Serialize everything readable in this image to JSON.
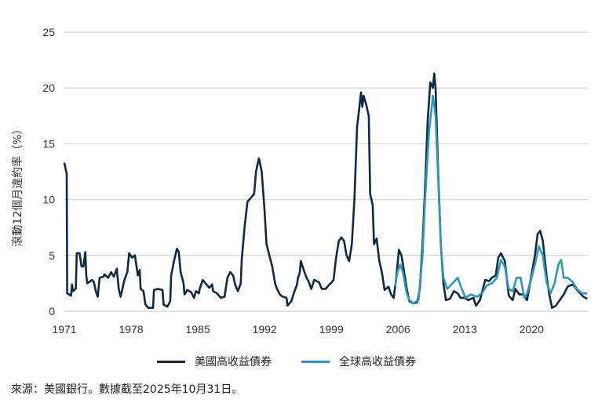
{
  "chart_data": {
    "type": "line",
    "title": "",
    "xlabel": "",
    "ylabel": "滾動12個月違約率（%）",
    "ylim": [
      0,
      25
    ],
    "xlim": [
      1971,
      2026
    ],
    "yticks": [
      "0",
      "5",
      "10",
      "15",
      "20",
      "25"
    ],
    "xticks": [
      "1971",
      "1978",
      "1985",
      "1992",
      "1999",
      "2006",
      "2013",
      "2020"
    ],
    "grid": "horizontal",
    "legend_position": "bottom",
    "series": [
      {
        "name": "美國高收益債券",
        "color": "#0d2a45",
        "points": [
          [
            1971.0,
            13.3
          ],
          [
            1971.2,
            12.5
          ],
          [
            1971.25,
            12.3
          ],
          [
            1971.3,
            1.6
          ],
          [
            1971.7,
            1.4
          ],
          [
            1971.8,
            2.4
          ],
          [
            1971.9,
            1.8
          ],
          [
            1972.2,
            2.0
          ],
          [
            1972.3,
            5.2
          ],
          [
            1972.6,
            5.2
          ],
          [
            1972.8,
            4.0
          ],
          [
            1973.0,
            4.0
          ],
          [
            1973.2,
            5.3
          ],
          [
            1973.3,
            3.2
          ],
          [
            1973.4,
            2.5
          ],
          [
            1973.9,
            2.8
          ],
          [
            1974.1,
            2.6
          ],
          [
            1974.3,
            1.8
          ],
          [
            1974.5,
            1.3
          ],
          [
            1974.7,
            3.0
          ],
          [
            1975.1,
            3.1
          ],
          [
            1975.2,
            3.3
          ],
          [
            1975.6,
            3.0
          ],
          [
            1975.9,
            3.5
          ],
          [
            1976.2,
            3.1
          ],
          [
            1976.5,
            3.8
          ],
          [
            1976.7,
            2.0
          ],
          [
            1976.9,
            1.3
          ],
          [
            1977.3,
            2.8
          ],
          [
            1977.6,
            3.5
          ],
          [
            1977.8,
            5.2
          ],
          [
            1978.1,
            4.8
          ],
          [
            1978.4,
            5.0
          ],
          [
            1978.7,
            3.2
          ],
          [
            1978.9,
            3.7
          ],
          [
            1979.0,
            2.0
          ],
          [
            1979.3,
            1.8
          ],
          [
            1979.5,
            0.6
          ],
          [
            1979.8,
            0.3
          ],
          [
            1980.3,
            0.3
          ],
          [
            1980.4,
            1.9
          ],
          [
            1980.8,
            2.0
          ],
          [
            1981.3,
            1.9
          ],
          [
            1981.4,
            0.6
          ],
          [
            1981.8,
            0.4
          ],
          [
            1982.1,
            0.9
          ],
          [
            1982.2,
            3.2
          ],
          [
            1982.5,
            4.5
          ],
          [
            1982.8,
            5.6
          ],
          [
            1983.0,
            5.3
          ],
          [
            1983.2,
            3.5
          ],
          [
            1983.5,
            2.5
          ],
          [
            1983.6,
            1.5
          ],
          [
            1983.9,
            1.9
          ],
          [
            1984.3,
            1.7
          ],
          [
            1984.6,
            1.2
          ],
          [
            1984.8,
            1.8
          ],
          [
            1985.1,
            1.6
          ],
          [
            1985.2,
            2.0
          ],
          [
            1985.5,
            2.8
          ],
          [
            1985.9,
            2.4
          ],
          [
            1986.2,
            2.1
          ],
          [
            1986.5,
            2.4
          ],
          [
            1986.6,
            1.8
          ],
          [
            1987.0,
            1.6
          ],
          [
            1987.4,
            1.2
          ],
          [
            1987.8,
            1.3
          ],
          [
            1988.1,
            3.0
          ],
          [
            1988.4,
            3.5
          ],
          [
            1988.7,
            3.2
          ],
          [
            1988.9,
            2.4
          ],
          [
            1989.2,
            1.8
          ],
          [
            1989.5,
            2.5
          ],
          [
            1989.6,
            4.6
          ],
          [
            1989.9,
            7.5
          ],
          [
            1990.2,
            9.8
          ],
          [
            1990.6,
            10.2
          ],
          [
            1990.9,
            10.5
          ],
          [
            1991.1,
            12.5
          ],
          [
            1991.4,
            13.7
          ],
          [
            1991.7,
            12.5
          ],
          [
            1992.0,
            9.0
          ],
          [
            1992.2,
            6.0
          ],
          [
            1992.5,
            5.0
          ],
          [
            1992.8,
            4.0
          ],
          [
            1993.1,
            2.5
          ],
          [
            1993.3,
            2.0
          ],
          [
            1993.6,
            1.5
          ],
          [
            1993.9,
            1.3
          ],
          [
            1994.3,
            1.2
          ],
          [
            1994.4,
            0.5
          ],
          [
            1994.8,
            0.9
          ],
          [
            1995.1,
            1.7
          ],
          [
            1995.4,
            2.4
          ],
          [
            1995.5,
            3.0
          ],
          [
            1995.7,
            3.5
          ],
          [
            1995.8,
            4.5
          ],
          [
            1996.1,
            3.7
          ],
          [
            1996.4,
            3.0
          ],
          [
            1996.6,
            2.7
          ],
          [
            1996.9,
            2.0
          ],
          [
            1997.2,
            2.8
          ],
          [
            1997.7,
            2.6
          ],
          [
            1998.0,
            2.0
          ],
          [
            1998.4,
            2.0
          ],
          [
            1998.8,
            2.4
          ],
          [
            1998.95,
            2.5
          ],
          [
            1999.23,
            2.8
          ],
          [
            1999.5,
            4.8
          ],
          [
            1999.78,
            6.3
          ],
          [
            2000.05,
            6.6
          ],
          [
            2000.33,
            6.3
          ],
          [
            2000.6,
            5.0
          ],
          [
            2000.87,
            4.5
          ],
          [
            2001.15,
            6.0
          ],
          [
            2001.42,
            10
          ],
          [
            2001.7,
            16.5
          ],
          [
            2001.97,
            18.5
          ],
          [
            2002.11,
            19.6
          ],
          [
            2002.25,
            18.3
          ],
          [
            2002.38,
            19.3
          ],
          [
            2002.66,
            18.5
          ],
          [
            2002.93,
            17.5
          ],
          [
            2003.07,
            10.5
          ],
          [
            2003.34,
            9.5
          ],
          [
            2003.48,
            6.0
          ],
          [
            2003.75,
            6.5
          ],
          [
            2004.03,
            4.5
          ],
          [
            2004.3,
            3.5
          ],
          [
            2004.58,
            1.9
          ],
          [
            2004.99,
            2.2
          ],
          [
            2005.26,
            1.5
          ],
          [
            2005.54,
            1.2
          ],
          [
            2005.81,
            3.0
          ],
          [
            2006.09,
            5.5
          ],
          [
            2006.36,
            5.0
          ],
          [
            2006.64,
            3.5
          ],
          [
            2006.91,
            2.0
          ],
          [
            2007.18,
            0.9
          ],
          [
            2007.6,
            0.7
          ],
          [
            2008.01,
            0.8
          ],
          [
            2008.28,
            2.0
          ],
          [
            2008.56,
            6.0
          ],
          [
            2008.83,
            11
          ],
          [
            2009.1,
            17
          ],
          [
            2009.38,
            20.5
          ],
          [
            2009.65,
            20.0
          ],
          [
            2009.79,
            21.3
          ],
          [
            2009.93,
            20.0
          ],
          [
            2010.2,
            12.5
          ],
          [
            2010.48,
            6.0
          ],
          [
            2010.75,
            2.5
          ],
          [
            2011.02,
            1.0
          ],
          [
            2011.44,
            1.1
          ],
          [
            2011.85,
            1.8
          ],
          [
            2012.26,
            1.6
          ],
          [
            2012.53,
            1.2
          ],
          [
            2012.95,
            1.2
          ],
          [
            2013.36,
            1.0
          ],
          [
            2013.9,
            1.2
          ],
          [
            2014.18,
            0.5
          ],
          [
            2014.59,
            1.0
          ],
          [
            2015.14,
            2.8
          ],
          [
            2015.55,
            2.7
          ],
          [
            2015.83,
            3.0
          ],
          [
            2016.24,
            3.2
          ],
          [
            2016.51,
            4.8
          ],
          [
            2016.79,
            5.2
          ],
          [
            2017.2,
            4.5
          ],
          [
            2017.61,
            1.4
          ],
          [
            2018.02,
            1.0
          ],
          [
            2018.3,
            2.0
          ],
          [
            2018.71,
            1.5
          ],
          [
            2019.12,
            1.5
          ],
          [
            2019.53,
            1.0
          ],
          [
            2019.94,
            3.0
          ],
          [
            2020.35,
            5.0
          ],
          [
            2020.63,
            6.9
          ],
          [
            2020.9,
            7.2
          ],
          [
            2021.18,
            6.3
          ],
          [
            2021.59,
            3.0
          ],
          [
            2021.86,
            1.5
          ],
          [
            2022.14,
            0.3
          ],
          [
            2022.55,
            0.5
          ],
          [
            2022.96,
            1.0
          ],
          [
            2023.37,
            1.5
          ],
          [
            2023.78,
            2.2
          ],
          [
            2024.33,
            2.4
          ],
          [
            2024.88,
            1.8
          ],
          [
            2025.43,
            1.3
          ],
          [
            2025.84,
            1.1
          ]
        ]
      },
      {
        "name": "全球高收益債券",
        "color": "#2a9ab8",
        "points": [
          [
            2005.67,
            2.2
          ],
          [
            2005.95,
            3.5
          ],
          [
            2006.22,
            4.2
          ],
          [
            2006.5,
            3.5
          ],
          [
            2006.91,
            1.6
          ],
          [
            2007.18,
            1.0
          ],
          [
            2007.6,
            0.7
          ],
          [
            2008.14,
            1.0
          ],
          [
            2008.56,
            5.0
          ],
          [
            2008.83,
            10
          ],
          [
            2009.24,
            16
          ],
          [
            2009.65,
            19.3
          ],
          [
            2009.93,
            17.5
          ],
          [
            2010.2,
            12
          ],
          [
            2010.48,
            6
          ],
          [
            2010.75,
            3.0
          ],
          [
            2011.16,
            2.0
          ],
          [
            2011.71,
            2.5
          ],
          [
            2012.26,
            3.0
          ],
          [
            2012.67,
            2.0
          ],
          [
            2013.08,
            1.2
          ],
          [
            2013.63,
            1.5
          ],
          [
            2014.32,
            1.3
          ],
          [
            2014.87,
            1.7
          ],
          [
            2015.28,
            2.3
          ],
          [
            2015.83,
            2.5
          ],
          [
            2016.37,
            3.0
          ],
          [
            2016.79,
            4.6
          ],
          [
            2017.2,
            4.0
          ],
          [
            2017.61,
            2.0
          ],
          [
            2018.02,
            1.8
          ],
          [
            2018.43,
            3.0
          ],
          [
            2018.84,
            3.0
          ],
          [
            2019.25,
            1.2
          ],
          [
            2019.53,
            1.6
          ],
          [
            2019.94,
            2.8
          ],
          [
            2020.35,
            4.2
          ],
          [
            2020.76,
            5.8
          ],
          [
            2021.18,
            5.0
          ],
          [
            2021.59,
            2.5
          ],
          [
            2022.0,
            1.6
          ],
          [
            2022.41,
            2.5
          ],
          [
            2022.82,
            4.2
          ],
          [
            2023.1,
            4.6
          ],
          [
            2023.37,
            3.0
          ],
          [
            2023.78,
            3.0
          ],
          [
            2024.33,
            2.6
          ],
          [
            2024.74,
            2.0
          ],
          [
            2025.29,
            1.6
          ],
          [
            2025.84,
            1.6
          ]
        ]
      }
    ]
  },
  "source": "來源：美國銀行。數據截至2025年10月31日。"
}
